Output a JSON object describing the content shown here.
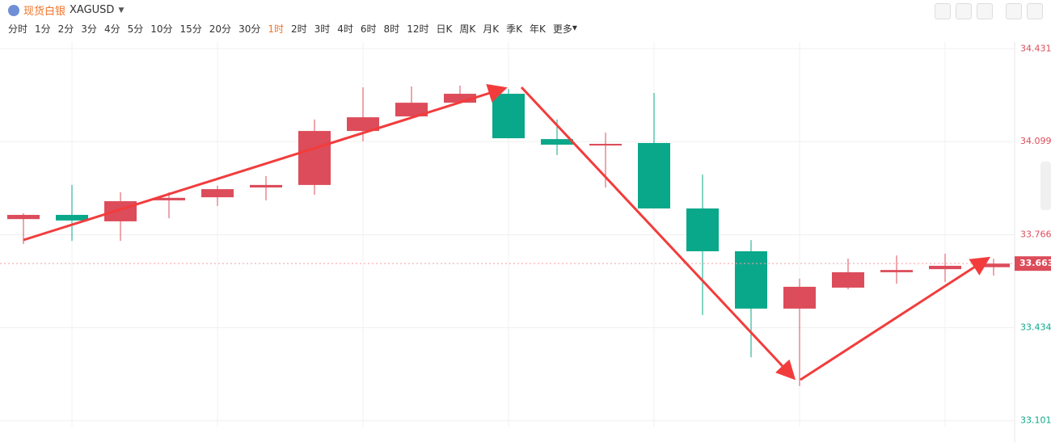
{
  "header": {
    "title": "现货白银",
    "symbol": "XAGUSD",
    "intervals": [
      "分时",
      "1分",
      "2分",
      "3分",
      "4分",
      "5分",
      "10分",
      "15分",
      "20分",
      "30分",
      "1时",
      "2时",
      "3时",
      "4时",
      "6时",
      "8时",
      "12时",
      "日K",
      "周K",
      "月K",
      "季K",
      "年K"
    ],
    "more": "更多"
  },
  "chart_data": {
    "type": "candlestick",
    "open": [
      33.822,
      33.837,
      33.814,
      33.889,
      33.9,
      33.935,
      33.944,
      34.137,
      34.189,
      34.238,
      34.27,
      34.108,
      34.085,
      34.094,
      33.86,
      33.707,
      33.502,
      33.577,
      33.632,
      33.643,
      33.65
    ],
    "high": [
      33.843,
      33.944,
      33.918,
      33.918,
      33.941,
      33.976,
      34.178,
      34.293,
      34.296,
      34.299,
      34.287,
      34.178,
      34.131,
      34.273,
      33.981,
      33.747,
      33.609,
      33.681,
      33.692,
      33.698,
      33.68
    ],
    "low": [
      33.733,
      33.744,
      33.744,
      33.825,
      33.869,
      33.889,
      33.909,
      34.1,
      34.186,
      34.238,
      34.111,
      34.051,
      33.935,
      33.86,
      33.479,
      33.328,
      33.225,
      33.571,
      33.591,
      33.597,
      33.62
    ],
    "close": [
      33.837,
      33.817,
      33.886,
      33.898,
      33.929,
      33.944,
      34.137,
      34.186,
      34.238,
      34.27,
      34.111,
      34.088,
      34.091,
      33.86,
      33.707,
      33.502,
      33.58,
      33.632,
      33.64,
      33.655,
      33.663
    ],
    "ylim": [
      33.08,
      34.455
    ],
    "yticks": [
      33.101,
      33.434,
      33.766,
      34.099,
      34.431
    ],
    "up_color": "#dc4c5a",
    "down_color": "#0aa88a",
    "grid": true
  }
}
